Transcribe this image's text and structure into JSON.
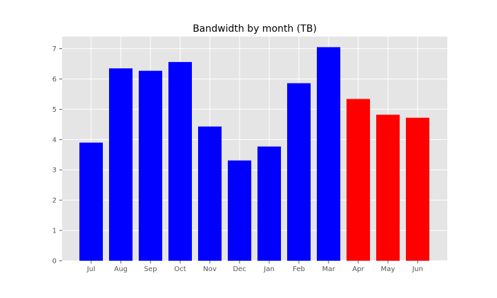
{
  "chart_data": {
    "type": "bar",
    "title": "Bandwidth by month (TB)",
    "xlabel": "",
    "ylabel": "",
    "categories": [
      "Jul",
      "Aug",
      "Sep",
      "Oct",
      "Nov",
      "Dec",
      "Jan",
      "Feb",
      "Mar",
      "Apr",
      "May",
      "Jun"
    ],
    "values": [
      3.9,
      6.35,
      6.27,
      6.56,
      4.43,
      3.31,
      3.77,
      5.86,
      7.05,
      5.34,
      4.82,
      4.72
    ],
    "bar_colors": [
      "#0000ff",
      "#0000ff",
      "#0000ff",
      "#0000ff",
      "#0000ff",
      "#0000ff",
      "#0000ff",
      "#0000ff",
      "#0000ff",
      "#ff0000",
      "#ff0000",
      "#ff0000"
    ],
    "ylim": [
      0,
      7.4
    ],
    "yticks": [
      0,
      1,
      2,
      3,
      4,
      5,
      6,
      7
    ],
    "grid": true,
    "style": {
      "plot_background": "#e5e5e5",
      "grid_color": "#ffffff"
    }
  }
}
